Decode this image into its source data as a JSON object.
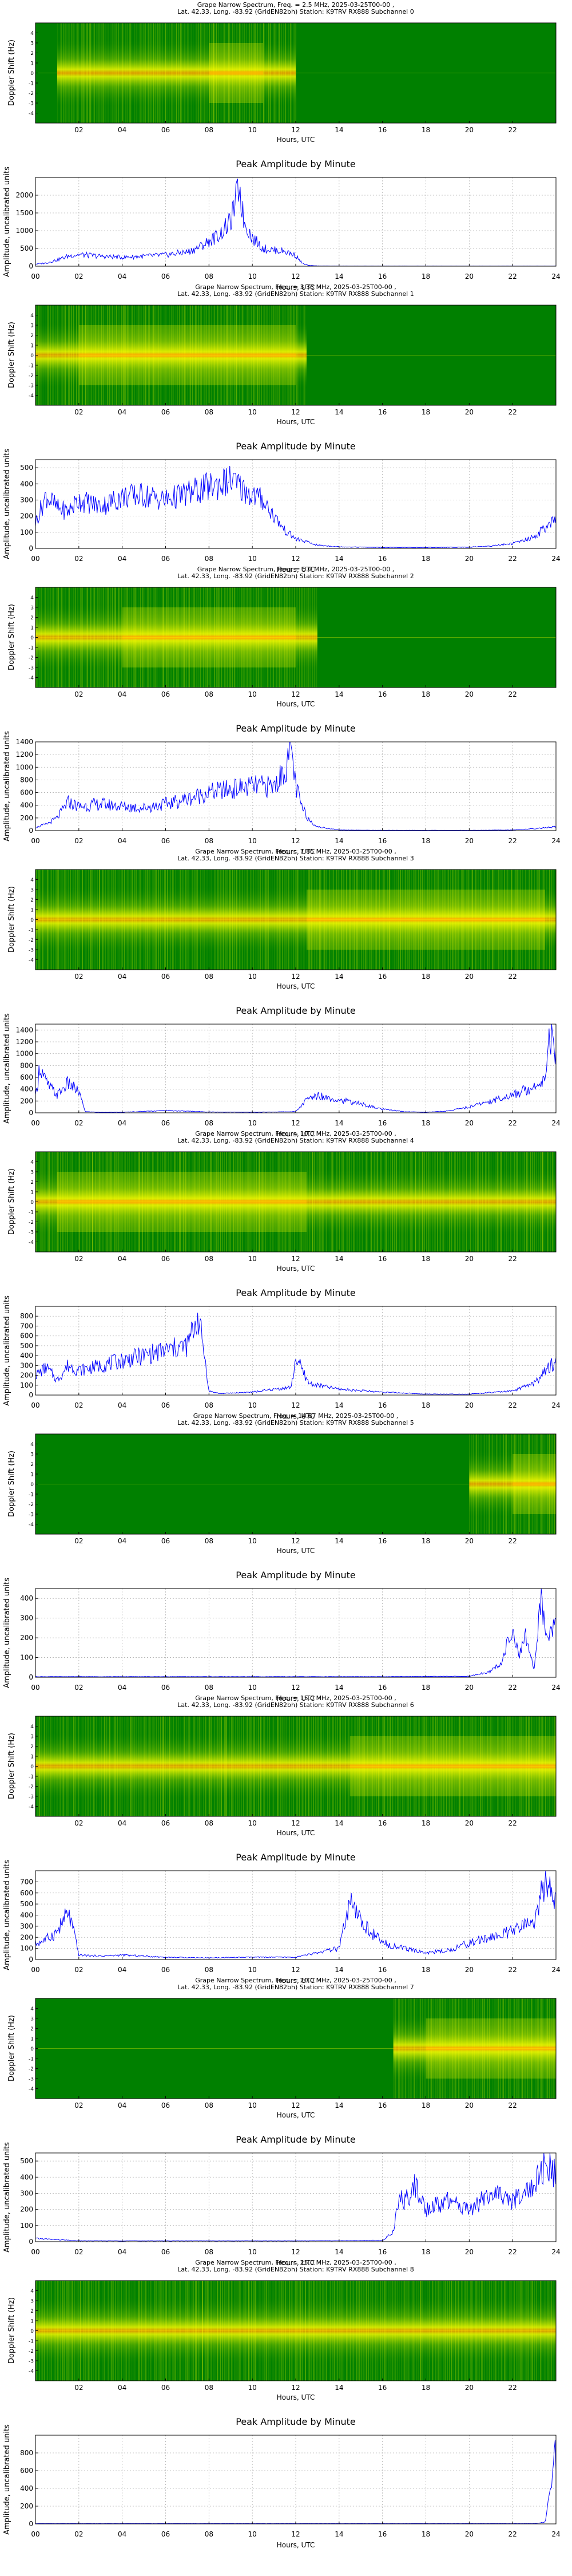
{
  "spectrum_titles": [
    "Grape Narrow Spectrum, Freq. = 2.5 MHz, 2025-03-25T00-00 ,",
    "Grape Narrow Spectrum, Freq. = 3.33 MHz, 2025-03-25T00-00 ,",
    "Grape Narrow Spectrum, Freq. = 5.0 MHz, 2025-03-25T00-00 ,",
    "Grape Narrow Spectrum, Freq. = 7.85 MHz, 2025-03-25T00-00 ,",
    "Grape Narrow Spectrum, Freq. = 10.0 MHz, 2025-03-25T00-00 ,",
    "Grape Narrow Spectrum, Freq. = 14.67 MHz, 2025-03-25T00-00 ,",
    "Grape Narrow Spectrum, Freq. = 15.0 MHz, 2025-03-25T00-00 ,",
    "Grape Narrow Spectrum, Freq. = 20.0 MHz, 2025-03-25T00-00 ,",
    "Grape Narrow Spectrum, Freq. = 25.0 MHz, 2025-03-25T00-00 ,"
  ],
  "spectrum_subtitles": [
    "Lat.  42.33, Long. -83.92 (GridEN82bh) Station: K9TRV RX888 Subchannel 0",
    "Lat.  42.33, Long. -83.92 (GridEN82bh) Station: K9TRV RX888 Subchannel 1",
    "Lat.  42.33, Long. -83.92 (GridEN82bh) Station: K9TRV RX888 Subchannel 2",
    "Lat.  42.33, Long. -83.92 (GridEN82bh) Station: K9TRV RX888 Subchannel 3",
    "Lat.  42.33, Long. -83.92 (GridEN82bh) Station: K9TRV RX888 Subchannel 4",
    "Lat.  42.33, Long. -83.92 (GridEN82bh) Station: K9TRV RX888 Subchannel 5",
    "Lat.  42.33, Long. -83.92 (GridEN82bh) Station: K9TRV RX888 Subchannel 6",
    "Lat.  42.33, Long. -83.92 (GridEN82bh) Station: K9TRV RX888 Subchannel 7",
    "Lat.  42.33, Long. -83.92 (GridEN82bh) Station: K9TRV RX888 Subchannel 8"
  ],
  "spectrum_ylabel": "Doppler Shift (Hz)",
  "spectrum_yticks": [
    "4",
    "3",
    "2",
    "1",
    "0",
    "-1",
    "-2",
    "-3",
    "-4"
  ],
  "spectrum_xticks": [
    "02",
    "04",
    "06",
    "08",
    "10",
    "12",
    "14",
    "16",
    "18",
    "20",
    "22"
  ],
  "amplitude_title": "Peak Amplitude by Minute",
  "amplitude_ylabel": "Amplitude, uncalibrated units",
  "xlabel": "Hours, UTC",
  "amplitude_xticks": [
    "00",
    "02",
    "04",
    "06",
    "08",
    "10",
    "12",
    "14",
    "16",
    "18",
    "20",
    "22",
    "24"
  ],
  "colors": {
    "background": "#ffffff",
    "spectrum_bg": "#008000",
    "spectrum_mid": "#b4e000",
    "spectrum_hot": "#ffff00",
    "spectrum_peak": "#ff9a00",
    "line": "#0000ff",
    "grid": "#b0b0b0",
    "axis": "#000000"
  },
  "chart_data": [
    {
      "type": "heatmap",
      "subchannel": 0,
      "frequency_mhz": 2.5,
      "xlim": [
        0,
        24
      ],
      "ylim": [
        -5,
        5
      ],
      "bright_hours": [
        1.0,
        12.0
      ],
      "peak_hours": [
        8.0,
        10.5
      ],
      "center_doppler_hz": 0.0
    },
    {
      "type": "line",
      "subchannel": 0,
      "xlim": [
        0,
        24
      ],
      "ylim": [
        0,
        2500
      ],
      "yticks": [
        0,
        500,
        1000,
        1500,
        2000
      ],
      "grid": true,
      "x": [
        0,
        0.5,
        1,
        1.5,
        2,
        3,
        4,
        5,
        6,
        7,
        7.5,
        8,
        8.5,
        9,
        9.2,
        9.4,
        9.6,
        10,
        10.5,
        11,
        11.5,
        12,
        12.3,
        12.6,
        13,
        14,
        16,
        18,
        20,
        22,
        24
      ],
      "y": [
        60,
        90,
        180,
        280,
        330,
        280,
        250,
        280,
        320,
        400,
        520,
        700,
        900,
        1250,
        1750,
        2300,
        1300,
        800,
        500,
        450,
        420,
        300,
        80,
        20,
        8,
        5,
        5,
        5,
        5,
        5,
        5
      ]
    },
    {
      "type": "heatmap",
      "subchannel": 1,
      "frequency_mhz": 3.33,
      "xlim": [
        0,
        24
      ],
      "ylim": [
        -5,
        5
      ],
      "bright_hours": [
        0.0,
        12.5
      ],
      "peak_hours": [
        2.0,
        12.0
      ],
      "center_doppler_hz": 0.0
    },
    {
      "type": "line",
      "subchannel": 1,
      "xlim": [
        0,
        24
      ],
      "ylim": [
        0,
        550
      ],
      "yticks": [
        0,
        100,
        200,
        300,
        400,
        500
      ],
      "grid": true,
      "x": [
        0,
        0.5,
        1,
        1.5,
        2,
        3,
        4,
        5,
        6,
        7,
        8,
        9,
        10,
        10.5,
        11,
        11.5,
        12,
        12.5,
        13,
        14,
        16,
        18,
        20,
        21,
        22,
        23,
        23.5,
        24
      ],
      "y": [
        160,
        330,
        250,
        230,
        300,
        260,
        320,
        330,
        300,
        340,
        380,
        420,
        330,
        300,
        200,
        110,
        60,
        40,
        20,
        10,
        6,
        6,
        8,
        15,
        30,
        70,
        130,
        170
      ]
    },
    {
      "type": "heatmap",
      "subchannel": 2,
      "frequency_mhz": 5.0,
      "xlim": [
        0,
        24
      ],
      "ylim": [
        -5,
        5
      ],
      "bright_hours": [
        0.0,
        13.0
      ],
      "peak_hours": [
        4.0,
        12.0
      ],
      "center_doppler_hz": 0.0
    },
    {
      "type": "line",
      "subchannel": 2,
      "xlim": [
        0,
        24
      ],
      "ylim": [
        0,
        1400
      ],
      "yticks": [
        0,
        200,
        400,
        600,
        800,
        1000,
        1200,
        1400
      ],
      "grid": true,
      "x": [
        0,
        0.5,
        1,
        1.5,
        2,
        3,
        4,
        5,
        6,
        7,
        8,
        9,
        10,
        11,
        11.5,
        11.8,
        12,
        12.3,
        12.6,
        13,
        14,
        16,
        18,
        20,
        22,
        23,
        24
      ],
      "y": [
        50,
        100,
        200,
        450,
        380,
        420,
        380,
        360,
        420,
        500,
        600,
        650,
        700,
        700,
        950,
        1300,
        700,
        350,
        180,
        60,
        10,
        5,
        5,
        5,
        10,
        30,
        60
      ]
    },
    {
      "type": "heatmap",
      "subchannel": 3,
      "frequency_mhz": 7.85,
      "xlim": [
        0,
        24
      ],
      "ylim": [
        -5,
        5
      ],
      "bright_hours": [
        0.0,
        24.0
      ],
      "peak_hours": [
        12.5,
        23.5
      ],
      "center_doppler_hz": 0.0
    },
    {
      "type": "line",
      "subchannel": 3,
      "xlim": [
        0,
        24
      ],
      "ylim": [
        0,
        1500
      ],
      "yticks": [
        0,
        200,
        400,
        600,
        800,
        1000,
        1200,
        1400
      ],
      "grid": true,
      "x": [
        0,
        0.2,
        0.5,
        1,
        1.5,
        2,
        2.3,
        3,
        4,
        6,
        8,
        10,
        12,
        12.5,
        13,
        14,
        15,
        16,
        17,
        18,
        19,
        20,
        21,
        22,
        23,
        23.5,
        23.7,
        24
      ],
      "y": [
        250,
        800,
        500,
        300,
        500,
        350,
        20,
        8,
        10,
        40,
        15,
        10,
        20,
        220,
        300,
        220,
        150,
        60,
        20,
        10,
        30,
        100,
        200,
        300,
        450,
        600,
        1400,
        900
      ]
    },
    {
      "type": "heatmap",
      "subchannel": 4,
      "frequency_mhz": 10.0,
      "xlim": [
        0,
        24
      ],
      "ylim": [
        -5,
        5
      ],
      "bright_hours": [
        0.0,
        24.0
      ],
      "peak_hours": [
        1.0,
        12.5
      ],
      "center_doppler_hz": 0.0
    },
    {
      "type": "line",
      "subchannel": 4,
      "xlim": [
        0,
        24
      ],
      "ylim": [
        0,
        900
      ],
      "yticks": [
        0,
        100,
        200,
        300,
        400,
        500,
        600,
        700,
        800
      ],
      "grid": true,
      "x": [
        0,
        0.5,
        1,
        1.5,
        2,
        3,
        4,
        5,
        6,
        7,
        7.5,
        7.8,
        8,
        8.5,
        10,
        11.8,
        12,
        12.3,
        12.6,
        13,
        14,
        16,
        18,
        20,
        22,
        23,
        24
      ],
      "y": [
        200,
        280,
        150,
        300,
        250,
        300,
        350,
        400,
        450,
        500,
        800,
        400,
        40,
        15,
        30,
        80,
        380,
        250,
        120,
        100,
        60,
        30,
        10,
        10,
        40,
        120,
        350
      ]
    },
    {
      "type": "heatmap",
      "subchannel": 5,
      "frequency_mhz": 14.67,
      "xlim": [
        0,
        24
      ],
      "ylim": [
        -5,
        5
      ],
      "bright_hours": [
        20.0,
        24.0
      ],
      "peak_hours": [
        22.0,
        24.0
      ],
      "center_doppler_hz": 0.0
    },
    {
      "type": "line",
      "subchannel": 5,
      "xlim": [
        0,
        24
      ],
      "ylim": [
        0,
        450
      ],
      "yticks": [
        0,
        100,
        200,
        300,
        400
      ],
      "grid": true,
      "x": [
        0,
        4,
        8,
        12,
        16,
        20,
        21,
        21.5,
        22,
        22.3,
        22.6,
        23,
        23.3,
        23.6,
        24
      ],
      "y": [
        3,
        3,
        3,
        3,
        3,
        5,
        30,
        80,
        250,
        100,
        200,
        40,
        430,
        200,
        300
      ]
    },
    {
      "type": "heatmap",
      "subchannel": 6,
      "frequency_mhz": 15.0,
      "xlim": [
        0,
        24
      ],
      "ylim": [
        -5,
        5
      ],
      "bright_hours": [
        0.0,
        24.0
      ],
      "peak_hours": [
        14.5,
        24.0
      ],
      "center_doppler_hz": 0.0
    },
    {
      "type": "line",
      "subchannel": 6,
      "xlim": [
        0,
        24
      ],
      "ylim": [
        0,
        800
      ],
      "yticks": [
        0,
        100,
        200,
        300,
        400,
        500,
        600,
        700
      ],
      "grid": true,
      "x": [
        0,
        0.5,
        1,
        1.5,
        1.7,
        2,
        3,
        4,
        6,
        8,
        10,
        12,
        14,
        14.5,
        14.8,
        15.2,
        16,
        17,
        18,
        19,
        20,
        21,
        22,
        23,
        23.5,
        24
      ],
      "y": [
        140,
        180,
        250,
        420,
        300,
        40,
        30,
        40,
        20,
        15,
        20,
        20,
        100,
        500,
        400,
        300,
        150,
        100,
        60,
        80,
        150,
        200,
        250,
        350,
        700,
        500
      ]
    },
    {
      "type": "heatmap",
      "subchannel": 7,
      "frequency_mhz": 20.0,
      "xlim": [
        0,
        24
      ],
      "ylim": [
        -5,
        5
      ],
      "bright_hours": [
        16.5,
        24.0
      ],
      "peak_hours": [
        18.0,
        24.0
      ],
      "center_doppler_hz": 0.0
    },
    {
      "type": "line",
      "subchannel": 7,
      "xlim": [
        0,
        24
      ],
      "ylim": [
        0,
        550
      ],
      "yticks": [
        0,
        100,
        200,
        300,
        400,
        500
      ],
      "grid": true,
      "x": [
        0,
        2,
        4,
        8,
        12,
        16,
        16.5,
        16.8,
        17,
        17.5,
        18,
        19,
        20,
        21,
        22,
        23,
        23.5,
        24
      ],
      "y": [
        20,
        5,
        5,
        5,
        5,
        8,
        60,
        300,
        250,
        350,
        200,
        250,
        200,
        300,
        250,
        350,
        480,
        400
      ]
    },
    {
      "type": "heatmap",
      "subchannel": 8,
      "frequency_mhz": 25.0,
      "xlim": [
        0,
        24
      ],
      "ylim": [
        -5,
        5
      ],
      "bright_hours": [
        0.0,
        24.0
      ],
      "peak_hours": [],
      "center_doppler_hz": 0.0
    },
    {
      "type": "line",
      "subchannel": 8,
      "xlim": [
        0,
        24
      ],
      "ylim": [
        0,
        1000
      ],
      "yticks": [
        0,
        200,
        400,
        600,
        800
      ],
      "grid": true,
      "x": [
        0,
        4,
        8,
        12,
        16,
        20,
        23,
        23.5,
        23.7,
        23.8,
        23.9,
        24
      ],
      "y": [
        3,
        3,
        3,
        3,
        3,
        3,
        3,
        20,
        300,
        500,
        900,
        700
      ]
    }
  ]
}
